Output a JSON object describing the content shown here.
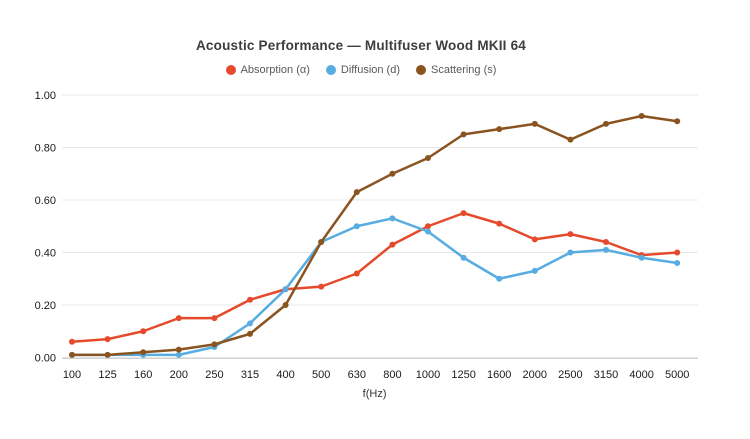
{
  "chart_data": {
    "type": "line",
    "title": "Acoustic Performance — Multifuser Wood MKII 64",
    "xlabel": "f(Hz)",
    "ylabel": "",
    "ylim": [
      0,
      1.0
    ],
    "ytick_labels": [
      "0.00",
      "0.20",
      "0.40",
      "0.60",
      "0.80",
      "1.00"
    ],
    "yticks": [
      0.0,
      0.2,
      0.4,
      0.6,
      0.8,
      1.0
    ],
    "grid": true,
    "legend_position": "top",
    "marker": "circle",
    "categories": [
      "100",
      "125",
      "160",
      "200",
      "250",
      "315",
      "400",
      "500",
      "630",
      "800",
      "1000",
      "1250",
      "1600",
      "2000",
      "2500",
      "3150",
      "4000",
      "5000"
    ],
    "series": [
      {
        "name": "Absorption (α)",
        "color": "#e64a2c",
        "values": [
          0.06,
          0.07,
          0.1,
          0.15,
          0.15,
          0.22,
          0.26,
          0.27,
          0.32,
          0.43,
          0.5,
          0.55,
          0.51,
          0.45,
          0.47,
          0.44,
          0.39,
          0.4
        ]
      },
      {
        "name": "Diffusion (d)",
        "color": "#57ace0",
        "values": [
          0.01,
          0.01,
          0.01,
          0.01,
          0.04,
          0.13,
          0.26,
          0.44,
          0.5,
          0.53,
          0.48,
          0.38,
          0.3,
          0.33,
          0.4,
          0.41,
          0.38,
          0.36
        ]
      },
      {
        "name": "Scattering (s)",
        "color": "#8a5420",
        "values": [
          0.01,
          0.01,
          0.02,
          0.03,
          0.05,
          0.09,
          0.2,
          0.44,
          0.63,
          0.7,
          0.76,
          0.85,
          0.87,
          0.89,
          0.83,
          0.89,
          0.92,
          0.9
        ]
      }
    ]
  },
  "style": {
    "grid_color": "#e8e8e8",
    "axis_line_color": "#cfcfcf",
    "tick_label_color": "#1a1a1a",
    "axis_title_color": "#333333",
    "title_color": "#3d3d3d",
    "legend_text_color": "#595959",
    "background": "#ffffff"
  }
}
